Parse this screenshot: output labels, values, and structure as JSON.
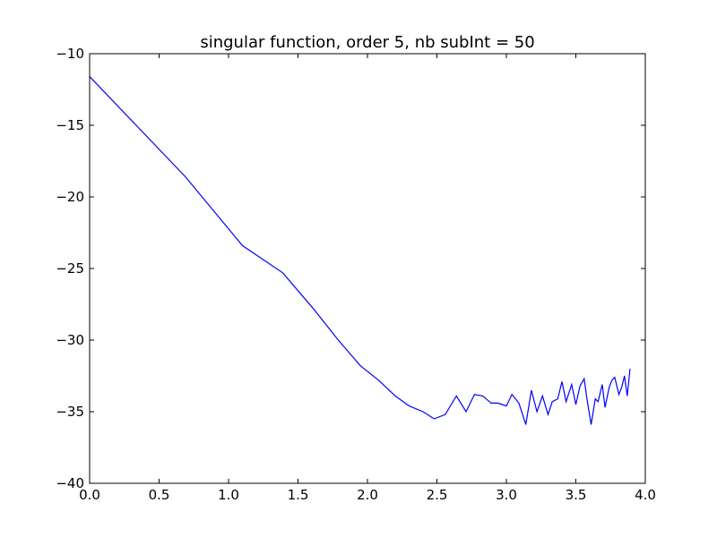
{
  "chart_data": {
    "type": "line",
    "title": "singular function, order 5, nb subInt = 50",
    "xlabel": "",
    "ylabel": "",
    "xlim": [
      0.0,
      4.0
    ],
    "ylim": [
      -40,
      -10
    ],
    "x_ticks": [
      0.0,
      0.5,
      1.0,
      1.5,
      2.0,
      2.5,
      3.0,
      3.5,
      4.0
    ],
    "x_tick_labels": [
      "0.0",
      "0.5",
      "1.0",
      "1.5",
      "2.0",
      "2.5",
      "3.0",
      "3.5",
      "4.0"
    ],
    "y_ticks": [
      -10,
      -15,
      -20,
      -25,
      -30,
      -35,
      -40
    ],
    "y_tick_labels": [
      "−10",
      "−15",
      "−20",
      "−25",
      "−30",
      "−35",
      "−40"
    ],
    "grid": false,
    "series": [
      {
        "color": "#0000ff",
        "points": [
          [
            0.0,
            -11.6
          ],
          [
            0.69,
            -18.6
          ],
          [
            1.1,
            -23.4
          ],
          [
            1.39,
            -25.3
          ],
          [
            1.61,
            -27.8
          ],
          [
            1.79,
            -30.0
          ],
          [
            1.95,
            -31.8
          ],
          [
            2.08,
            -32.8
          ],
          [
            2.2,
            -33.9
          ],
          [
            2.3,
            -34.6
          ],
          [
            2.4,
            -35.0
          ],
          [
            2.48,
            -35.5
          ],
          [
            2.56,
            -35.2
          ],
          [
            2.64,
            -33.9
          ],
          [
            2.71,
            -35.0
          ],
          [
            2.77,
            -33.8
          ],
          [
            2.83,
            -33.9
          ],
          [
            2.89,
            -34.4
          ],
          [
            2.94,
            -34.4
          ],
          [
            3.0,
            -34.6
          ],
          [
            3.04,
            -33.8
          ],
          [
            3.09,
            -34.4
          ],
          [
            3.14,
            -35.9
          ],
          [
            3.18,
            -33.5
          ],
          [
            3.22,
            -35.0
          ],
          [
            3.26,
            -33.9
          ],
          [
            3.3,
            -35.2
          ],
          [
            3.33,
            -34.3
          ],
          [
            3.37,
            -34.1
          ],
          [
            3.4,
            -32.9
          ],
          [
            3.43,
            -34.3
          ],
          [
            3.47,
            -33.1
          ],
          [
            3.5,
            -34.5
          ],
          [
            3.53,
            -33.2
          ],
          [
            3.56,
            -32.7
          ],
          [
            3.58,
            -34.1
          ],
          [
            3.61,
            -35.9
          ],
          [
            3.64,
            -34.1
          ],
          [
            3.66,
            -34.3
          ],
          [
            3.69,
            -33.1
          ],
          [
            3.71,
            -34.7
          ],
          [
            3.74,
            -33.3
          ],
          [
            3.76,
            -32.8
          ],
          [
            3.78,
            -32.6
          ],
          [
            3.81,
            -33.8
          ],
          [
            3.83,
            -33.3
          ],
          [
            3.85,
            -32.5
          ],
          [
            3.87,
            -33.9
          ],
          [
            3.89,
            -32.0
          ]
        ]
      }
    ]
  }
}
